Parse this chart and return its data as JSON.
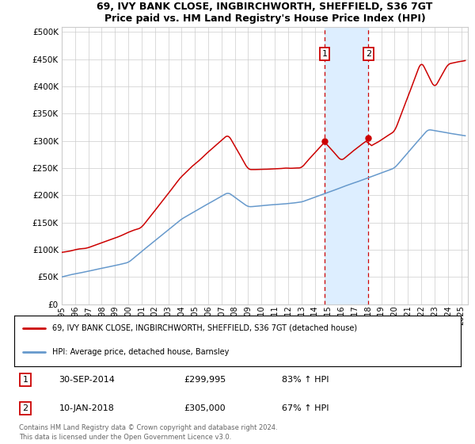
{
  "title": "69, IVY BANK CLOSE, INGBIRCHWORTH, SHEFFIELD, S36 7GT",
  "subtitle": "Price paid vs. HM Land Registry's House Price Index (HPI)",
  "y_ticks": [
    0,
    50000,
    100000,
    150000,
    200000,
    250000,
    300000,
    350000,
    400000,
    450000,
    500000
  ],
  "ylim": [
    0,
    510000
  ],
  "sale1_date": "30-SEP-2014",
  "sale1_price": 299995,
  "sale1_hpi": "83% ↑ HPI",
  "sale2_date": "10-JAN-2018",
  "sale2_price": 305000,
  "sale2_hpi": "67% ↑ HPI",
  "sale1_x": 2014.75,
  "sale2_x": 2018.03,
  "legend_property": "69, IVY BANK CLOSE, INGBIRCHWORTH, SHEFFIELD, S36 7GT (detached house)",
  "legend_hpi": "HPI: Average price, detached house, Barnsley",
  "footer": "Contains HM Land Registry data © Crown copyright and database right 2024.\nThis data is licensed under the Open Government Licence v3.0.",
  "property_color": "#cc0000",
  "hpi_color": "#6699cc",
  "highlight_color": "#ddeeff",
  "background_color": "#ffffff",
  "grid_color": "#cccccc",
  "xlim_left": 1995,
  "xlim_right": 2025.5
}
